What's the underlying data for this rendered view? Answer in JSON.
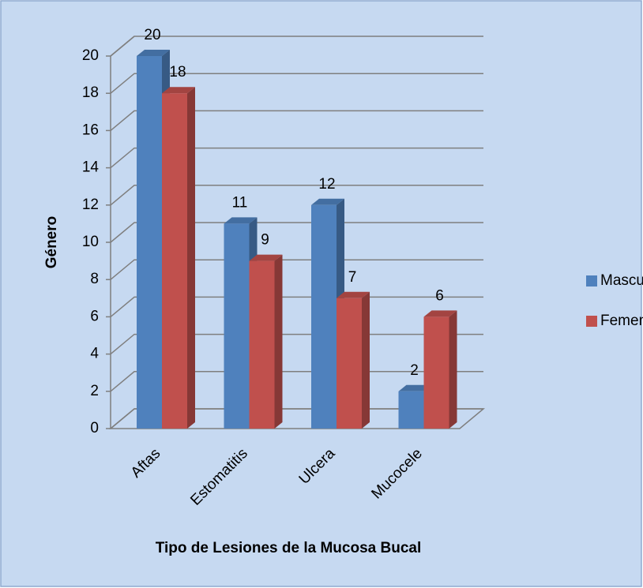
{
  "chart_data": {
    "type": "bar3d",
    "x_label": "Tipo de Lesiones de la Mucosa Bucal",
    "y_label": "Género",
    "categories": [
      "Aftas",
      "Estomatitis",
      "Ulcera",
      "Mucocele"
    ],
    "series": [
      {
        "name": "Masculino",
        "color": "#4f81bd",
        "values": [
          20,
          11,
          12,
          2
        ]
      },
      {
        "name": "Femenino",
        "color": "#c0504d",
        "values": [
          18,
          9,
          7,
          6
        ]
      }
    ],
    "ylim": [
      0,
      20
    ],
    "yticks": [
      0,
      2,
      4,
      6,
      8,
      10,
      12,
      14,
      16,
      18,
      20
    ],
    "grid": true,
    "legend": "right"
  }
}
